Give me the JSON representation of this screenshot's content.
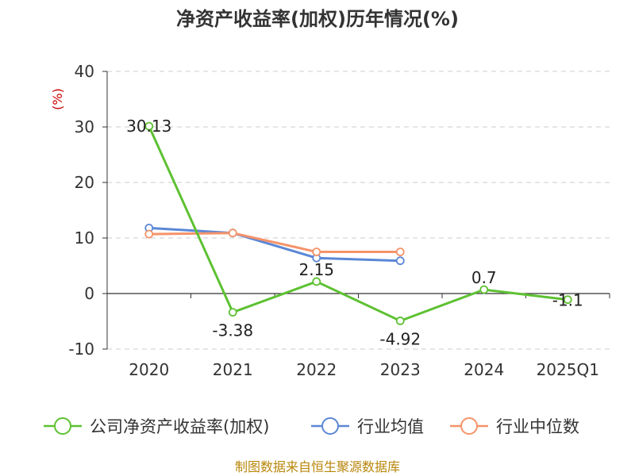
{
  "chart_data": {
    "type": "line",
    "title": "净资产收益率(加权)历年情况(%)",
    "ylabel": "(%)",
    "xlabel": "",
    "categories": [
      "2020",
      "2021",
      "2022",
      "2023",
      "2024",
      "2025Q1"
    ],
    "ylim": [
      -10,
      40
    ],
    "yticks": [
      40,
      30,
      20,
      10,
      0,
      -10
    ],
    "grid": true,
    "legend_position": "bottom",
    "series": [
      {
        "name": "公司净资产收益率(加权)",
        "color": "#5dc132",
        "values": [
          30.13,
          -3.38,
          2.15,
          -4.92,
          0.7,
          -1.1
        ],
        "labels": [
          "30.13",
          "-3.38",
          "2.15",
          "-4.92",
          "0.7",
          "-1.1"
        ]
      },
      {
        "name": "行业均值",
        "color": "#5b87d6",
        "values": [
          11.8,
          10.9,
          6.4,
          5.9,
          null,
          null
        ]
      },
      {
        "name": "行业中位数",
        "color": "#f5936a",
        "values": [
          10.7,
          10.9,
          7.5,
          7.5,
          null,
          null
        ]
      }
    ]
  },
  "source": "制图数据来自恒生聚源数据库"
}
